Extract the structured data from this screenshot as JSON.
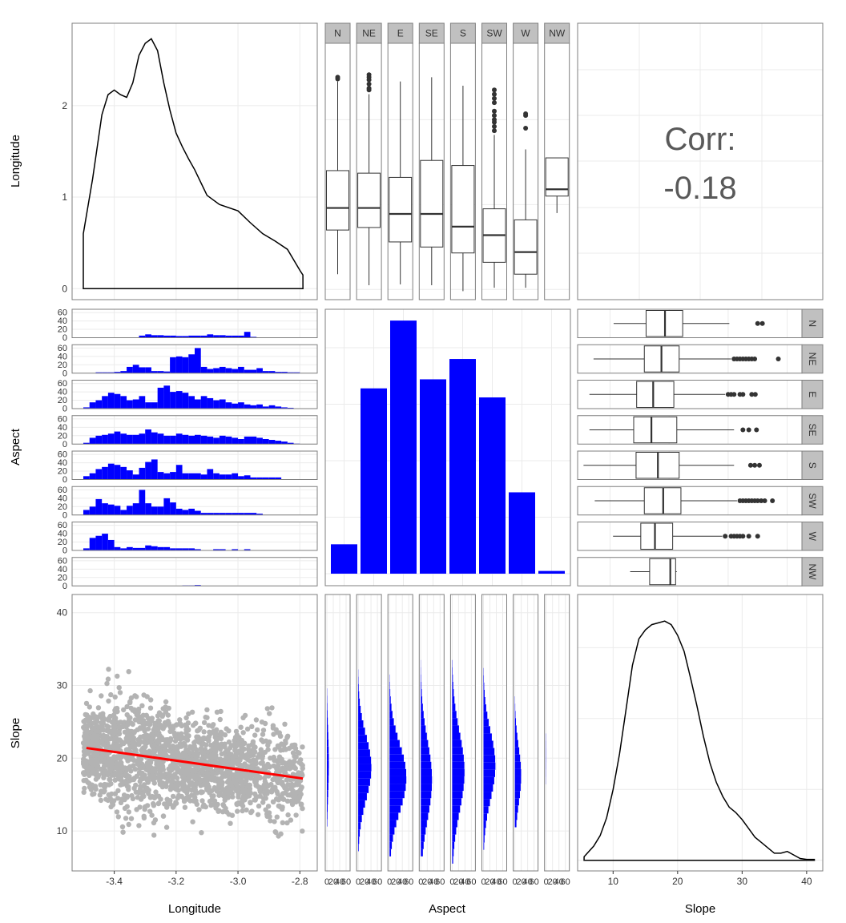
{
  "chart_data": {
    "type": "scatter",
    "variables": [
      "Longitude",
      "Aspect",
      "Slope"
    ],
    "aspect_levels": [
      "N",
      "NE",
      "E",
      "SE",
      "S",
      "SW",
      "W",
      "NW"
    ],
    "colors": {
      "bar": "#0000ff",
      "point": "#b3b3b3",
      "fit": "#ff0000",
      "strip": "#c0c0c0",
      "line": "#000000"
    },
    "grid": true,
    "panels": {
      "longitude_density": {
        "type": "area",
        "xlim": [
          -3.5,
          -2.78
        ],
        "ylim": [
          -0.12,
          2.9
        ],
        "y_ticks": [
          "0",
          "1",
          "2"
        ],
        "y_tick_values": [
          0,
          1,
          2
        ],
        "x": [
          -3.5,
          -3.47,
          -3.44,
          -3.42,
          -3.4,
          -3.38,
          -3.36,
          -3.34,
          -3.32,
          -3.3,
          -3.28,
          -3.26,
          -3.24,
          -3.22,
          -3.2,
          -3.18,
          -3.16,
          -3.14,
          -3.1,
          -3.06,
          -3.0,
          -2.96,
          -2.92,
          -2.88,
          -2.84,
          -2.8,
          -2.79
        ],
        "y": [
          0.6,
          1.2,
          1.9,
          2.12,
          2.17,
          2.12,
          2.09,
          2.25,
          2.55,
          2.68,
          2.73,
          2.6,
          2.25,
          1.95,
          1.7,
          1.55,
          1.42,
          1.3,
          1.02,
          0.92,
          0.85,
          0.72,
          0.6,
          0.52,
          0.43,
          0.2,
          0.15
        ]
      },
      "aspect_longitude_boxplots": {
        "type": "boxplot",
        "ylim": [
          -0.12,
          2.9
        ],
        "boxes": [
          {
            "level": "N",
            "lower": 0.18,
            "q1": 0.7,
            "median": 0.96,
            "q3": 1.4,
            "upper": 2.45,
            "outliers": [
              2.48,
              2.5
            ]
          },
          {
            "level": "NE",
            "lower": 0.05,
            "q1": 0.73,
            "median": 0.96,
            "q3": 1.37,
            "upper": 2.3,
            "outliers": [
              2.35,
              2.37,
              2.42,
              2.47,
              2.5,
              2.53
            ]
          },
          {
            "level": "E",
            "lower": 0.06,
            "q1": 0.56,
            "median": 0.89,
            "q3": 1.32,
            "upper": 2.45,
            "outliers": []
          },
          {
            "level": "SE",
            "lower": 0.05,
            "q1": 0.5,
            "median": 0.89,
            "q3": 1.52,
            "upper": 2.5,
            "outliers": []
          },
          {
            "level": "S",
            "lower": -0.02,
            "q1": 0.43,
            "median": 0.74,
            "q3": 1.46,
            "upper": 2.4,
            "outliers": []
          },
          {
            "level": "SW",
            "lower": 0.02,
            "q1": 0.32,
            "median": 0.64,
            "q3": 0.95,
            "upper": 1.82,
            "outliers": [
              1.87,
              1.92,
              1.97,
              2.0,
              2.05,
              2.1,
              2.2,
              2.25,
              2.3,
              2.35
            ]
          },
          {
            "level": "W",
            "lower": 0.02,
            "q1": 0.18,
            "median": 0.44,
            "q3": 0.82,
            "upper": 1.65,
            "outliers": [
              1.9,
              2.05,
              2.07
            ]
          },
          {
            "level": "NW",
            "lower": 0.9,
            "q1": 1.1,
            "median": 1.18,
            "q3": 1.55,
            "upper": 1.55,
            "outliers": []
          }
        ]
      },
      "correlation": {
        "label": "Corr:",
        "value": "-0.18"
      },
      "aspect_longitude_histograms": {
        "type": "bar",
        "xlim": [
          -3.5,
          -2.78
        ],
        "ylim": [
          0,
          68
        ],
        "y_ticks": [
          "0",
          "20",
          "40",
          "60"
        ],
        "y_tick_values": [
          0,
          20,
          40,
          60
        ],
        "bin_start": -3.5,
        "bin_width": 0.02,
        "counts": {
          "N": [
            0,
            0,
            0,
            0,
            0,
            0,
            0,
            0,
            0,
            5,
            8,
            6,
            6,
            5,
            5,
            4,
            4,
            5,
            5,
            5,
            8,
            6,
            6,
            5,
            5,
            5,
            14,
            2,
            0,
            0,
            0,
            0,
            0,
            0,
            0
          ],
          "NE": [
            0,
            0,
            2,
            2,
            2,
            3,
            5,
            15,
            20,
            14,
            14,
            5,
            5,
            4,
            38,
            40,
            38,
            45,
            60,
            15,
            10,
            12,
            15,
            12,
            10,
            15,
            8,
            8,
            12,
            5,
            5,
            3,
            3,
            2,
            2
          ],
          "E": [
            3,
            15,
            20,
            30,
            38,
            35,
            30,
            20,
            22,
            30,
            15,
            15,
            50,
            55,
            40,
            42,
            38,
            30,
            22,
            30,
            25,
            20,
            22,
            15,
            12,
            15,
            10,
            8,
            10,
            5,
            8,
            5,
            3,
            2,
            0
          ],
          "SE": [
            3,
            15,
            20,
            22,
            25,
            30,
            25,
            22,
            22,
            25,
            35,
            28,
            25,
            20,
            20,
            25,
            22,
            20,
            22,
            20,
            18,
            15,
            20,
            18,
            15,
            12,
            18,
            18,
            15,
            12,
            10,
            8,
            6,
            3,
            1
          ],
          "S": [
            8,
            15,
            25,
            30,
            38,
            35,
            30,
            22,
            12,
            28,
            42,
            48,
            18,
            15,
            18,
            35,
            15,
            15,
            15,
            12,
            25,
            15,
            12,
            12,
            15,
            8,
            10,
            5,
            5,
            5,
            5,
            5,
            0,
            0,
            0
          ],
          "SW": [
            12,
            20,
            38,
            28,
            25,
            22,
            12,
            22,
            28,
            60,
            28,
            20,
            20,
            40,
            30,
            15,
            12,
            15,
            10,
            5,
            5,
            5,
            5,
            5,
            5,
            5,
            5,
            5,
            3,
            0,
            0,
            0,
            0,
            0,
            0
          ],
          "W": [
            5,
            30,
            35,
            40,
            25,
            8,
            5,
            8,
            6,
            6,
            12,
            10,
            8,
            8,
            5,
            5,
            5,
            5,
            3,
            0,
            0,
            3,
            3,
            0,
            3,
            0,
            3,
            0,
            0,
            0,
            0,
            0,
            0,
            0,
            0
          ],
          "NW": [
            0,
            0,
            0,
            0,
            0,
            0,
            0,
            0,
            0,
            0,
            0,
            0,
            0,
            0,
            0,
            0,
            1,
            1,
            2,
            0,
            0,
            0,
            0,
            0,
            0,
            0,
            0,
            0,
            0,
            0,
            0,
            0,
            0,
            0,
            0
          ]
        }
      },
      "aspect_counts": {
        "type": "bar",
        "categories": [
          "N",
          "NE",
          "E",
          "SE",
          "S",
          "SW",
          "W",
          "NW"
        ],
        "values": [
          130,
          820,
          1120,
          860,
          950,
          780,
          360,
          12
        ],
        "ylim": [
          0,
          1170
        ]
      },
      "aspect_slope_boxplots": {
        "type": "boxplot",
        "xlim": [
          4.5,
          42.5
        ],
        "boxes": [
          {
            "level": "N",
            "lower": 10.6,
            "q1": 16.1,
            "median": 19.3,
            "q3": 22.3,
            "upper": 30.2,
            "outliers": [
              35.0,
              35.8
            ]
          },
          {
            "level": "NE",
            "lower": 7.2,
            "q1": 15.8,
            "median": 18.7,
            "q3": 21.7,
            "upper": 30.5,
            "outliers": [
              31.0,
              31.5,
              32.0,
              32.5,
              33.0,
              33.5,
              34.0,
              34.5,
              38.5
            ]
          },
          {
            "level": "E",
            "lower": 6.5,
            "q1": 14.5,
            "median": 17.3,
            "q3": 20.8,
            "upper": 29.5,
            "outliers": [
              30.0,
              30.5,
              31.0,
              32.0,
              32.5,
              34.0,
              34.6
            ]
          },
          {
            "level": "SE",
            "lower": 6.5,
            "q1": 14.0,
            "median": 17.0,
            "q3": 21.3,
            "upper": 31.0,
            "outliers": [
              32.5,
              33.5,
              34.8
            ]
          },
          {
            "level": "S",
            "lower": 5.5,
            "q1": 14.4,
            "median": 18.1,
            "q3": 21.7,
            "upper": 31.0,
            "outliers": [
              33.8,
              34.5,
              35.3
            ]
          },
          {
            "level": "SW",
            "lower": 7.4,
            "q1": 15.8,
            "median": 19.0,
            "q3": 22.0,
            "upper": 31.5,
            "outliers": [
              32.0,
              32.5,
              33.0,
              33.5,
              34.0,
              34.5,
              35.0,
              35.6,
              36.2,
              37.5
            ]
          },
          {
            "level": "W",
            "lower": 10.5,
            "q1": 15.2,
            "median": 17.6,
            "q3": 20.6,
            "upper": 29.0,
            "outliers": [
              29.5,
              30.5,
              31.0,
              31.5,
              32.0,
              32.5,
              33.5,
              35.0
            ]
          },
          {
            "level": "NW",
            "lower": 13.4,
            "q1": 16.7,
            "median": 20.2,
            "q3": 21.1,
            "upper": 21.3,
            "outliers": []
          }
        ]
      },
      "longitude_slope_scatter": {
        "type": "scatter",
        "xlim": [
          -3.5,
          -2.78
        ],
        "ylim": [
          4.5,
          42.5
        ],
        "x_ticks": [
          "-3.4",
          "-3.2",
          "-3.0",
          "-2.8"
        ],
        "x_tick_values": [
          -3.4,
          -3.2,
          -3.0,
          -2.8
        ],
        "y_ticks": [
          "10",
          "20",
          "30",
          "40"
        ],
        "y_tick_values": [
          10,
          20,
          30,
          40
        ],
        "n_points": 2000,
        "fit": {
          "x": [
            -3.49,
            -2.79
          ],
          "y": [
            21.4,
            17.2
          ]
        }
      },
      "slope_histograms": {
        "type": "bar",
        "xlim": [
          0,
          100
        ],
        "x_ticks": [
          "0",
          "20",
          "40",
          "60"
        ],
        "x_tick_values": [
          0,
          20,
          40,
          60
        ],
        "ylim": [
          4.5,
          42.5
        ],
        "bin_start": 5,
        "bin_width": 1
      },
      "slope_density": {
        "type": "area",
        "xlim": [
          4.5,
          42.5
        ],
        "x_ticks": [
          "10",
          "20",
          "30",
          "40"
        ],
        "x_tick_values": [
          10,
          20,
          30,
          40
        ],
        "x": [
          5.5,
          7,
          8,
          9,
          10,
          11,
          12,
          13,
          14,
          15,
          16,
          17,
          18,
          19,
          20,
          21,
          22,
          23,
          24,
          25,
          26,
          27,
          28,
          29,
          30,
          31,
          32,
          33,
          34,
          35,
          36,
          37,
          38,
          39,
          40,
          41.2
        ],
        "y": [
          0.002,
          0.008,
          0.014,
          0.024,
          0.04,
          0.06,
          0.085,
          0.11,
          0.125,
          0.13,
          0.133,
          0.134,
          0.135,
          0.133,
          0.127,
          0.118,
          0.103,
          0.087,
          0.07,
          0.055,
          0.044,
          0.036,
          0.03,
          0.027,
          0.023,
          0.018,
          0.013,
          0.01,
          0.007,
          0.004,
          0.004,
          0.005,
          0.003,
          0.001,
          0.0005,
          0.0005
        ],
        "ylim": [
          -0.006,
          0.15
        ]
      }
    },
    "axis_titles": {
      "x": [
        "Longitude",
        "Aspect",
        "Slope"
      ],
      "y": [
        "Longitude",
        "Aspect",
        "Slope"
      ]
    }
  }
}
